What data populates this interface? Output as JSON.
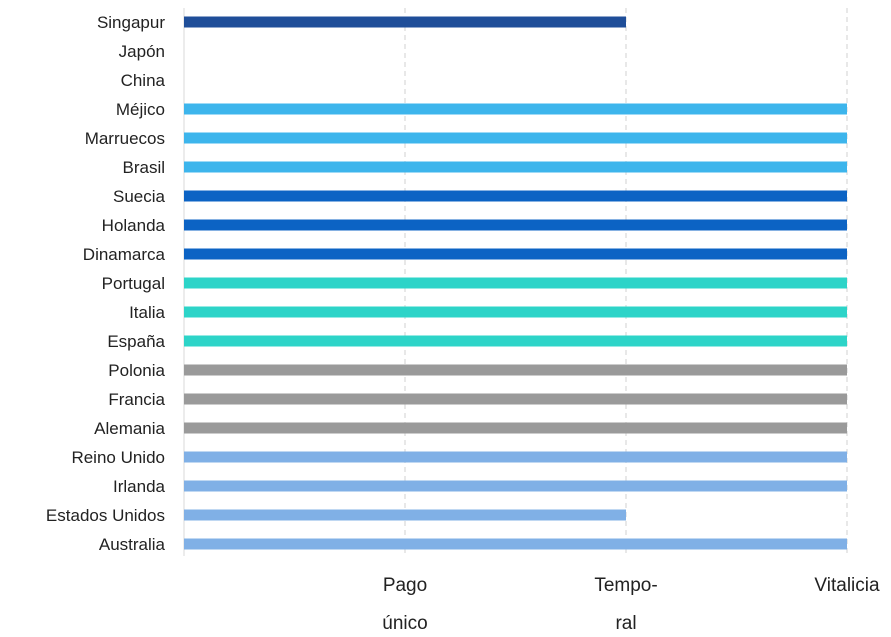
{
  "chart_data": {
    "type": "bar",
    "orientation": "horizontal",
    "title": "",
    "xlabel": "",
    "ylabel": "",
    "x_ticks": [
      {
        "value": 1,
        "lines": [
          "Pago",
          "único"
        ]
      },
      {
        "value": 2,
        "lines": [
          "Tempo-",
          "ral"
        ]
      },
      {
        "value": 3,
        "lines": [
          "Vitalicia"
        ]
      }
    ],
    "xlim": [
      0,
      3
    ],
    "grid": true,
    "legend": "none",
    "categories": [
      "Singapur",
      "Japón",
      "China",
      "Méjico",
      "Marruecos",
      "Brasil",
      "Suecia",
      "Holanda",
      "Dinamarca",
      "Portugal",
      "Italia",
      "España",
      "Polonia",
      "Francia",
      "Alemania",
      "Reino Unido",
      "Irlanda",
      "Estados Unidos",
      "Australia"
    ],
    "values": [
      2,
      0,
      0,
      3,
      3,
      3,
      3,
      3,
      3,
      3,
      3,
      3,
      3,
      3,
      3,
      3,
      3,
      2,
      3
    ],
    "colors": [
      "#1f4e99",
      "#1f4e99",
      "#1f4e99",
      "#3db5ec",
      "#3db5ec",
      "#3db5ec",
      "#0c63c4",
      "#0c63c4",
      "#0c63c4",
      "#2dd4c8",
      "#2dd4c8",
      "#2dd4c8",
      "#9a9a9a",
      "#9a9a9a",
      "#9a9a9a",
      "#80b0e6",
      "#80b0e6",
      "#80b0e6",
      "#80b0e6"
    ]
  }
}
